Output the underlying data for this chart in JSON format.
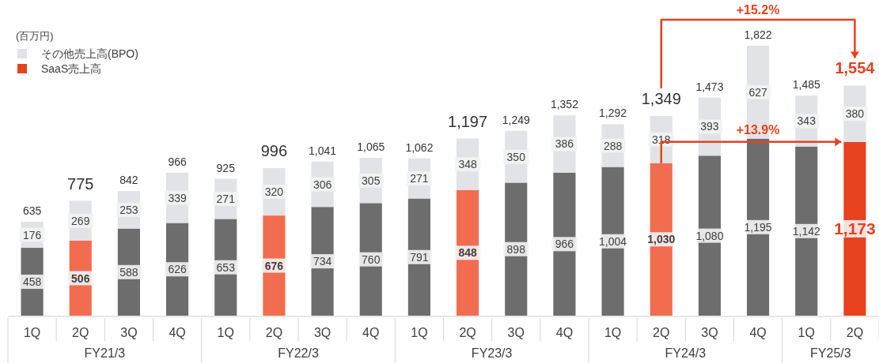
{
  "chart_data": {
    "type": "bar",
    "stacked": true,
    "categories": [
      "1Q",
      "2Q",
      "3Q",
      "4Q",
      "1Q",
      "2Q",
      "3Q",
      "4Q",
      "1Q",
      "2Q",
      "3Q",
      "4Q",
      "1Q",
      "2Q",
      "3Q",
      "4Q",
      "1Q",
      "2Q"
    ],
    "series": [
      {
        "name": "SaaS売上高",
        "color": "#e8411e",
        "values": [
          458,
          506,
          588,
          626,
          653,
          676,
          734,
          760,
          791,
          848,
          898,
          966,
          1004,
          1030,
          1080,
          1195,
          1142,
          1173
        ],
        "value_labels": [
          "458",
          "506",
          "588",
          "626",
          "653",
          "676",
          "734",
          "760",
          "791",
          "848",
          "898",
          "966",
          "1,004",
          "1,030",
          "1,080",
          "1,195",
          "1,142",
          "1,173"
        ],
        "colors": [
          "#6d6d6d",
          "#f26c4f",
          "#6d6d6d",
          "#6d6d6d",
          "#6d6d6d",
          "#f26c4f",
          "#6d6d6d",
          "#6d6d6d",
          "#6d6d6d",
          "#f26c4f",
          "#6d6d6d",
          "#6d6d6d",
          "#6d6d6d",
          "#f26c4f",
          "#6d6d6d",
          "#6d6d6d",
          "#6d6d6d",
          "#e8411e"
        ]
      },
      {
        "name": "その他売上高(BPO)",
        "color": "#e2e3e6",
        "values": [
          176,
          269,
          253,
          339,
          271,
          320,
          306,
          305,
          271,
          348,
          350,
          386,
          288,
          318,
          393,
          627,
          343,
          380
        ],
        "value_labels": [
          "176",
          "269",
          "253",
          "339",
          "271",
          "320",
          "306",
          "305",
          "271",
          "348",
          "350",
          "386",
          "288",
          "318",
          "393",
          "627",
          "343",
          "380"
        ]
      }
    ],
    "totals": [
      "635",
      "775",
      "842",
      "966",
      "925",
      "996",
      "1,041",
      "1,065",
      "1,062",
      "1,197",
      "1,249",
      "1,352",
      "1,292",
      "1,349",
      "1,473",
      "1,822",
      "1,485",
      "1,554"
    ],
    "legend": "top left",
    "annotations": [
      "(百万円)",
      "+15.2%",
      "+13.9%",
      "FY21/3",
      "FY22/3",
      "FY23/3",
      "FY24/3",
      "FY25/3"
    ]
  }
}
